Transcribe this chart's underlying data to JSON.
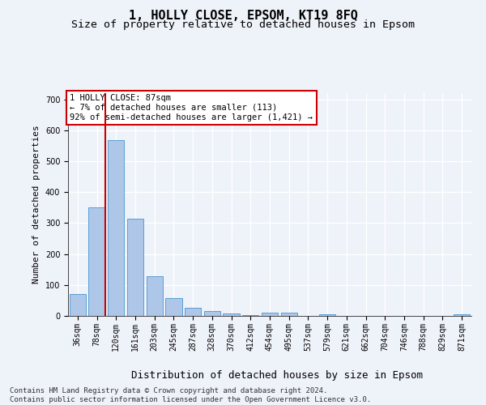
{
  "title1": "1, HOLLY CLOSE, EPSOM, KT19 8FQ",
  "title2": "Size of property relative to detached houses in Epsom",
  "xlabel": "Distribution of detached houses by size in Epsom",
  "ylabel": "Number of detached properties",
  "categories": [
    "36sqm",
    "78sqm",
    "120sqm",
    "161sqm",
    "203sqm",
    "245sqm",
    "287sqm",
    "328sqm",
    "370sqm",
    "412sqm",
    "454sqm",
    "495sqm",
    "537sqm",
    "579sqm",
    "621sqm",
    "662sqm",
    "704sqm",
    "746sqm",
    "788sqm",
    "829sqm",
    "871sqm"
  ],
  "values": [
    70,
    350,
    567,
    315,
    128,
    57,
    27,
    15,
    8,
    3,
    10,
    10,
    0,
    5,
    0,
    0,
    0,
    0,
    0,
    0,
    5
  ],
  "bar_color": "#aec6e8",
  "bar_edge_color": "#5a9fd4",
  "vline_index": 1,
  "vline_color": "#cc0000",
  "annotation_text": "1 HOLLY CLOSE: 87sqm\n← 7% of detached houses are smaller (113)\n92% of semi-detached houses are larger (1,421) →",
  "annotation_box_color": "#ffffff",
  "annotation_box_edgecolor": "#cc0000",
  "ylim": [
    0,
    720
  ],
  "yticks": [
    0,
    100,
    200,
    300,
    400,
    500,
    600,
    700
  ],
  "footer_text": "Contains HM Land Registry data © Crown copyright and database right 2024.\nContains public sector information licensed under the Open Government Licence v3.0.",
  "background_color": "#eef2f9",
  "plot_bg_color": "#eef2f9",
  "grid_color": "#ffffff",
  "title1_fontsize": 11,
  "title2_fontsize": 9.5,
  "xlabel_fontsize": 9,
  "ylabel_fontsize": 8,
  "tick_fontsize": 7,
  "annotation_fontsize": 7.5,
  "footer_fontsize": 6.5
}
